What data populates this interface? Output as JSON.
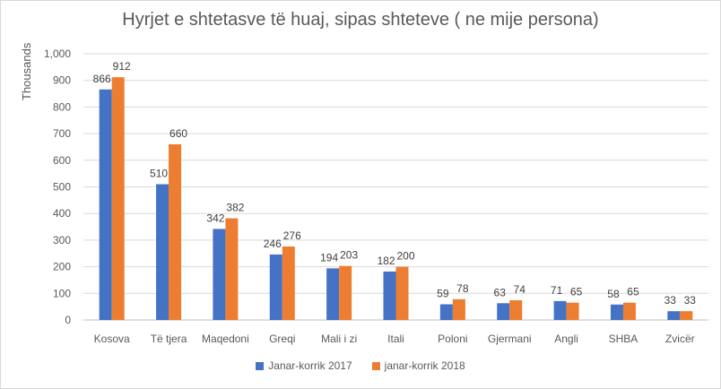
{
  "chart_data": {
    "type": "bar",
    "title": "Hyrjet e shtetasve të huaj, sipas shteteve ( ne mije persona)",
    "ylabel": "Thousands",
    "xlabel": "",
    "ylim": [
      0,
      1000
    ],
    "yticks": [
      "0",
      "100",
      "200",
      "300",
      "400",
      "500",
      "600",
      "700",
      "800",
      "900",
      "1,000"
    ],
    "categories": [
      "Kosova",
      "Të tjera",
      "Maqedoni",
      "Greqi",
      "Mali i zi",
      "Itali",
      "Poloni",
      "Gjermani",
      "Angli",
      "SHBA",
      "Zvicër"
    ],
    "series": [
      {
        "name": "Janar-korrik 2017",
        "color": "#4472c4",
        "values": [
          866,
          510,
          342,
          246,
          194,
          182,
          59,
          63,
          71,
          58,
          33
        ]
      },
      {
        "name": "janar-korrik 2018",
        "color": "#ed7d31",
        "values": [
          912,
          660,
          382,
          276,
          203,
          200,
          78,
          74,
          65,
          65,
          33
        ]
      }
    ],
    "grid": true,
    "legend_position": "bottom"
  }
}
